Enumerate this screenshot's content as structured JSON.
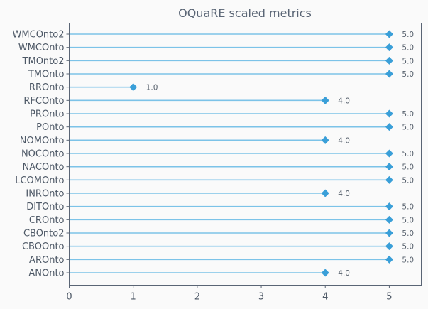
{
  "chart_data": {
    "type": "lollipop",
    "title": "OQuaRE scaled metrics",
    "xlabel": "",
    "ylabel": "",
    "xlim": [
      0,
      5.5
    ],
    "xticks": [
      0,
      1,
      2,
      3,
      4,
      5
    ],
    "grid": false,
    "colors": {
      "stem": "#7cc3e8",
      "marker": "#3a9fd8"
    },
    "categories": [
      "WMCOnto2",
      "WMCOnto",
      "TMOnto2",
      "TMOnto",
      "RROnto",
      "RFCOnto",
      "PROnto",
      "POnto",
      "NOMOnto",
      "NOCOnto",
      "NACOnto",
      "LCOMOnto",
      "INROnto",
      "DITOnto",
      "CROnto",
      "CBOnto2",
      "CBOOnto",
      "AROnto",
      "ANOnto"
    ],
    "values": [
      5,
      5,
      5,
      5,
      1,
      4,
      5,
      5,
      4,
      5,
      5,
      5,
      4,
      5,
      5,
      5,
      5,
      5,
      4
    ],
    "value_labels": [
      "5.0",
      "5.0",
      "5.0",
      "5.0",
      "1.0",
      "4.0",
      "5.0",
      "5.0",
      "4.0",
      "5.0",
      "5.0",
      "5.0",
      "4.0",
      "5.0",
      "5.0",
      "5.0",
      "5.0",
      "5.0",
      "4.0"
    ]
  }
}
